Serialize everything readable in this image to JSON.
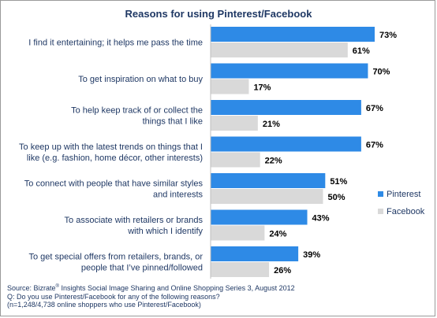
{
  "chart_data": {
    "type": "bar",
    "orientation": "horizontal",
    "title": "Reasons for using Pinterest/Facebook",
    "categories": [
      [
        "I find it entertaining; it helps me pass the time"
      ],
      [
        "To get inspiration on what to buy"
      ],
      [
        "To help keep track of or collect the",
        "things that I like"
      ],
      [
        "To keep up with the latest trends on things that I",
        "like (e.g. fashion, home décor, other interests)"
      ],
      [
        "To connect with people that have similar styles",
        "and interests"
      ],
      [
        "To associate with retailers or brands",
        "with which I identify"
      ],
      [
        "To get special offers from retailers, brands, or",
        "people that I’ve pinned/followed"
      ]
    ],
    "series": [
      {
        "name": "Pinterest",
        "values": [
          73,
          70,
          67,
          67,
          51,
          43,
          39
        ],
        "labels": [
          "73%",
          "70%",
          "67%",
          "67%",
          "51%",
          "43%",
          "39%"
        ],
        "color": "#2e8ae6"
      },
      {
        "name": "Facebook",
        "values": [
          61,
          17,
          21,
          22,
          50,
          24,
          26
        ],
        "labels": [
          "61%",
          "17%",
          "21%",
          "22%",
          "50%",
          "24%",
          "26%"
        ],
        "color": "#d9d9d9"
      }
    ],
    "unit": "%",
    "grid": false,
    "legend_position": "right"
  },
  "source": {
    "line1_prefix": "Source: Bizrate",
    "line1_sup": "®",
    "line1_suffix": " Insights Social Image Sharing and Online Shopping Series 3, August 2012",
    "line2": "Q: Do you use Pinterest/Facebook for any of the following reasons?",
    "line3": " (n=1,248/4,738 online shoppers who use Pinterest/Facebook)"
  }
}
